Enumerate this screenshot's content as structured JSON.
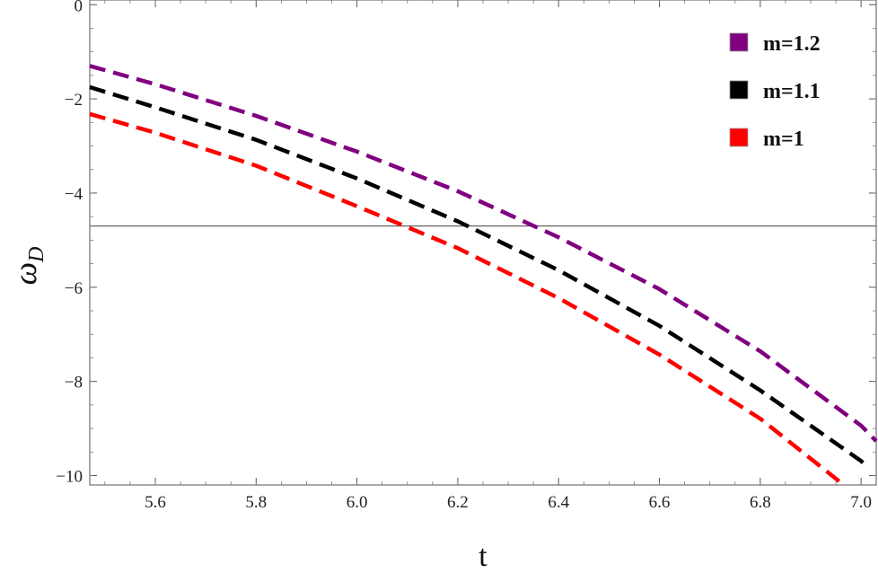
{
  "chart_data": {
    "type": "line",
    "title": "",
    "xlabel": "t",
    "ylabel": {
      "main": "ω",
      "sub": "D"
    },
    "xlim": [
      5.47,
      7.03
    ],
    "ylim": [
      -10.2,
      0.1
    ],
    "xticks": [
      5.6,
      5.8,
      6.0,
      6.2,
      6.4,
      6.6,
      6.8,
      7.0
    ],
    "xtick_labels": [
      "5.6",
      "5.8",
      "6.0",
      "6.2",
      "6.4",
      "6.6",
      "6.8",
      "7.0"
    ],
    "yticks": [
      0,
      -2,
      -4,
      -6,
      -8,
      -10
    ],
    "ytick_labels": [
      "0",
      "−2",
      "−4",
      "−6",
      "−8",
      "−10"
    ],
    "hline": -4.7,
    "legend_position": "top-right",
    "grid": false,
    "series": [
      {
        "name": "m=1.2",
        "color": "#800080",
        "style": "dashed",
        "x": [
          5.47,
          5.6,
          5.8,
          6.0,
          6.2,
          6.4,
          6.6,
          6.8,
          7.0,
          7.03
        ],
        "y": [
          -1.3,
          -1.69,
          -2.36,
          -3.12,
          -3.96,
          -4.94,
          -6.04,
          -7.36,
          -8.94,
          -9.27
        ]
      },
      {
        "name": "m=1.1",
        "color": "#000000",
        "style": "dashed",
        "x": [
          5.47,
          5.6,
          5.8,
          6.0,
          6.2,
          6.4,
          6.6,
          6.8,
          7.0,
          7.01
        ],
        "y": [
          -1.75,
          -2.18,
          -2.87,
          -3.69,
          -4.6,
          -5.64,
          -6.82,
          -8.19,
          -9.69,
          -9.8
        ]
      },
      {
        "name": "m=1",
        "color": "#ff0000",
        "style": "dashed",
        "x": [
          5.47,
          5.6,
          5.8,
          6.0,
          6.2,
          6.4,
          6.6,
          6.8,
          6.96
        ],
        "y": [
          -2.32,
          -2.72,
          -3.42,
          -4.28,
          -5.17,
          -6.23,
          -7.43,
          -8.79,
          -10.15
        ]
      }
    ]
  }
}
